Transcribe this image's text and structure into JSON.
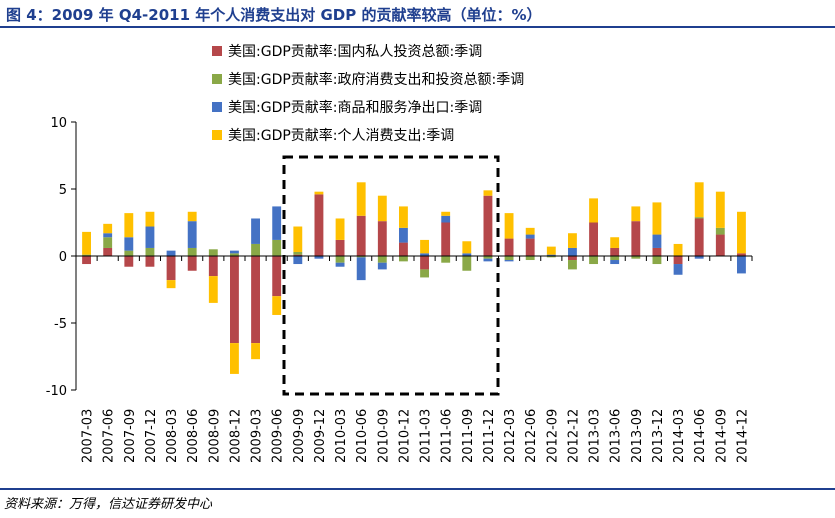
{
  "header": {
    "title": "图 4：2009 年 Q4-2011 年个人消费支出对 GDP 的贡献率较高（单位：%）"
  },
  "footer": {
    "source": "资料来源：万得，信达证券研发中心"
  },
  "chart_data": {
    "type": "bar",
    "stacked": true,
    "categories": [
      "2007-03",
      "2007-06",
      "2007-09",
      "2007-12",
      "2008-03",
      "2008-06",
      "2008-09",
      "2008-12",
      "2009-03",
      "2009-06",
      "2009-09",
      "2009-12",
      "2010-03",
      "2010-06",
      "2010-09",
      "2010-12",
      "2011-03",
      "2011-06",
      "2011-09",
      "2011-12",
      "2012-03",
      "2012-06",
      "2012-09",
      "2012-12",
      "2013-03",
      "2013-06",
      "2013-09",
      "2013-12",
      "2014-03",
      "2014-06",
      "2014-09",
      "2014-12"
    ],
    "ylim": [
      -10,
      10
    ],
    "yticks": [
      -10,
      -5,
      0,
      5,
      10
    ],
    "grid": false,
    "legend_position": "top",
    "series": [
      {
        "name": "美国:GDP贡献率:国内私人投资总额:季调",
        "color": "#b5474a",
        "values": [
          -0.6,
          0.6,
          -0.8,
          -0.8,
          -1.8,
          -1.1,
          -1.5,
          -6.5,
          -6.5,
          -3.0,
          0.1,
          4.6,
          1.2,
          3.0,
          2.6,
          1.0,
          -1.0,
          2.5,
          0.0,
          4.5,
          1.3,
          1.3,
          0.0,
          -0.3,
          2.5,
          0.6,
          2.6,
          0.6,
          -0.6,
          2.8,
          1.6,
          0.2
        ]
      },
      {
        "name": "美国:GDP贡献率:政府消费支出和投资总额:季调",
        "color": "#8aa847",
        "values": [
          0.1,
          0.8,
          0.4,
          0.6,
          0.0,
          0.6,
          0.5,
          0.2,
          0.9,
          1.2,
          0.2,
          0.0,
          -0.5,
          -0.1,
          -0.5,
          -0.4,
          -0.6,
          -0.5,
          -1.1,
          -0.2,
          -0.3,
          -0.3,
          -0.1,
          -0.7,
          -0.6,
          -0.3,
          -0.2,
          -0.6,
          0.0,
          0.1,
          0.5,
          0.0
        ]
      },
      {
        "name": "美国:GDP贡献率:商品和服务净出口:季调",
        "color": "#4472c4",
        "values": [
          0.0,
          0.3,
          1.0,
          1.6,
          0.4,
          2.0,
          0.0,
          0.2,
          1.9,
          2.5,
          -0.6,
          -0.2,
          -0.3,
          -1.7,
          -0.5,
          1.1,
          0.2,
          0.5,
          0.2,
          -0.2,
          -0.1,
          0.3,
          0.1,
          0.6,
          0.0,
          -0.3,
          0.0,
          1.0,
          -0.8,
          -0.2,
          0.0,
          -1.3
        ]
      },
      {
        "name": "美国:GDP贡献率:个人消费支出:季调",
        "color": "#ffc000",
        "values": [
          1.7,
          0.7,
          1.8,
          1.1,
          -0.6,
          0.7,
          -2.0,
          -2.3,
          -1.2,
          -1.4,
          1.9,
          0.2,
          1.6,
          2.5,
          1.9,
          1.6,
          1.0,
          0.3,
          0.9,
          0.4,
          1.9,
          0.5,
          0.6,
          1.1,
          1.8,
          0.8,
          1.1,
          2.4,
          0.9,
          2.6,
          2.7,
          3.1
        ]
      }
    ]
  }
}
